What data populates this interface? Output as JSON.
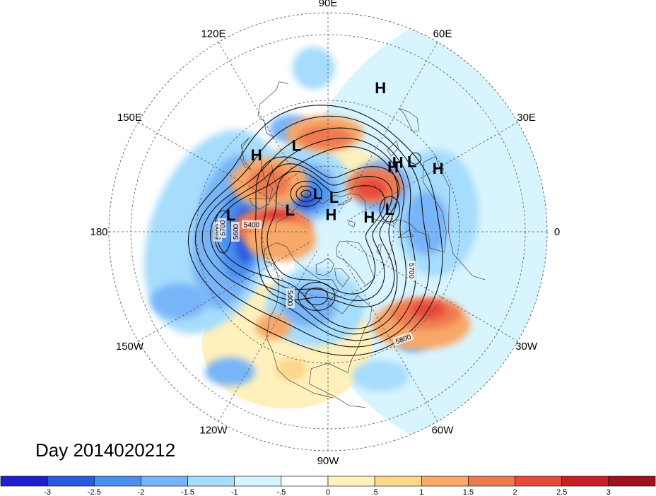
{
  "title": "Day 2014020212",
  "longitude_labels": [
    {
      "text": "90E",
      "bearing": 0
    },
    {
      "text": "60E",
      "bearing": 30
    },
    {
      "text": "30E",
      "bearing": 60
    },
    {
      "text": "0",
      "bearing": 90
    },
    {
      "text": "30W",
      "bearing": 120
    },
    {
      "text": "60W",
      "bearing": 150
    },
    {
      "text": "90W",
      "bearing": 180
    },
    {
      "text": "120W",
      "bearing": 210
    },
    {
      "text": "150W",
      "bearing": 240
    },
    {
      "text": "180",
      "bearing": 270
    },
    {
      "text": "150E",
      "bearing": 300
    },
    {
      "text": "120E",
      "bearing": 330
    }
  ],
  "pressure_centers": [
    {
      "type": "L",
      "lon": 110,
      "lat": 48
    },
    {
      "type": "H",
      "lon": 133,
      "lat": 42
    },
    {
      "type": "H",
      "lon": 45,
      "lat": 48
    },
    {
      "type": "L",
      "lon": 105,
      "lat": 72
    },
    {
      "type": "H",
      "lon": 20,
      "lat": 70
    },
    {
      "type": "L",
      "lon": 170,
      "lat": 45
    },
    {
      "type": "L",
      "lon": 150,
      "lat": 70
    },
    {
      "type": "H",
      "lon": 80,
      "lat": 82
    },
    {
      "type": "L",
      "lon": 20,
      "lat": 60
    },
    {
      "type": "L",
      "lon": 80,
      "lat": 74
    },
    {
      "type": "H",
      "lon": 45,
      "lat": 45
    },
    {
      "type": "L",
      "lon": 40,
      "lat": 40
    },
    {
      "type": "H",
      "lon": 30,
      "lat": 32
    },
    {
      "type": "H",
      "lon": 70,
      "lat": 20
    }
  ],
  "contour_labels": [
    "5400",
    "5400",
    "5600",
    "5700",
    "5800",
    "5700",
    "5800"
  ],
  "colorbar": {
    "colors": [
      "#2020d0",
      "#2a5ae0",
      "#4a8ef0",
      "#78b4f8",
      "#a6dcfc",
      "#d8f4ff",
      "#ffffff",
      "#fff0bc",
      "#fcd68a",
      "#f8a868",
      "#f07a50",
      "#e84a3c",
      "#c81e28",
      "#a01020"
    ],
    "labels": [
      "-3",
      "-2.5",
      "-2",
      "-1.5",
      "-1",
      "-.5",
      "0",
      ".5",
      "1",
      "1.5",
      "2",
      "2.5",
      "3"
    ]
  },
  "anomaly_colors": {
    "strong_neg": "#2a5ae0",
    "neg": "#4a8ef0",
    "mid_neg": "#78b4f8",
    "light_neg": "#a6dcfc",
    "faint_neg": "#d8f4ff",
    "faint_pos": "#fff0bc",
    "light_pos": "#fcd68a",
    "mid_pos": "#f8a868",
    "pos": "#f07a50",
    "strong_pos": "#e84a3c",
    "dark_pos": "#c81e28"
  }
}
